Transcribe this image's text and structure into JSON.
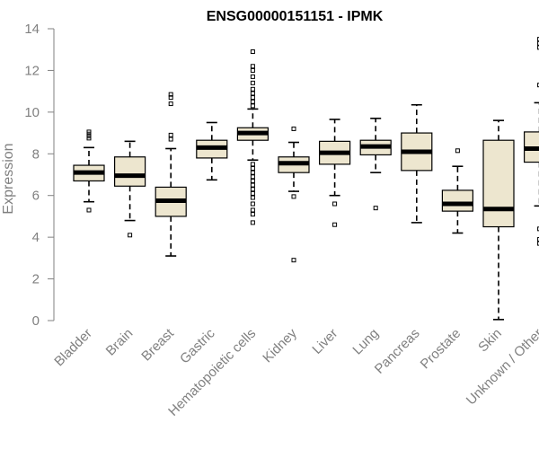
{
  "chart_data": {
    "type": "boxplot",
    "title": "ENSG00000151151 - IPMK",
    "ylabel": "Expression",
    "xlabel": "",
    "ylim": [
      0,
      14
    ],
    "yticks": [
      0,
      2,
      4,
      6,
      8,
      10,
      12,
      14
    ],
    "colors": {
      "box_fill": "#ede6cf",
      "box_stroke": "#000000",
      "median": "#000000",
      "axis": "#808080",
      "text": "#808080",
      "title": "#000000"
    },
    "groups": [
      {
        "name": "Bladder",
        "lw": 5.7,
        "q1": 6.7,
        "median": 7.1,
        "q3": 7.45,
        "uw": 8.3,
        "outliers": [
          5.3,
          8.75,
          8.85,
          8.95,
          9.05
        ]
      },
      {
        "name": "Brain",
        "lw": 4.8,
        "q1": 6.45,
        "median": 6.95,
        "q3": 7.85,
        "uw": 8.6,
        "outliers": [
          4.1
        ]
      },
      {
        "name": "Breast",
        "lw": 3.1,
        "q1": 5.0,
        "median": 5.75,
        "q3": 6.4,
        "uw": 8.25,
        "outliers": [
          8.7,
          8.9,
          10.4,
          10.7,
          10.85
        ]
      },
      {
        "name": "Gastric",
        "lw": 6.75,
        "q1": 7.8,
        "median": 8.3,
        "q3": 8.65,
        "uw": 9.5,
        "outliers": []
      },
      {
        "name": "Hematopoietic cells",
        "lw": 7.7,
        "q1": 8.65,
        "median": 9.0,
        "q3": 9.25,
        "uw": 10.15,
        "outliers": [
          4.7,
          5.1,
          5.3,
          5.6,
          5.9,
          6.1,
          6.3,
          6.5,
          6.7,
          6.9,
          7.1,
          7.3,
          7.5,
          10.3,
          10.5,
          10.7,
          10.9,
          11.1,
          11.4,
          11.7,
          12.0,
          12.2,
          12.9
        ]
      },
      {
        "name": "Kidney",
        "lw": 6.2,
        "q1": 7.1,
        "median": 7.55,
        "q3": 7.85,
        "uw": 8.55,
        "outliers": [
          2.9,
          5.95,
          9.2
        ]
      },
      {
        "name": "Liver",
        "lw": 6.0,
        "q1": 7.5,
        "median": 8.05,
        "q3": 8.6,
        "uw": 9.65,
        "outliers": [
          4.6,
          5.6
        ]
      },
      {
        "name": "Lung",
        "lw": 7.1,
        "q1": 7.95,
        "median": 8.35,
        "q3": 8.65,
        "uw": 9.7,
        "outliers": [
          5.4
        ]
      },
      {
        "name": "Pancreas",
        "lw": 4.7,
        "q1": 7.2,
        "median": 8.1,
        "q3": 9.0,
        "uw": 10.35,
        "outliers": []
      },
      {
        "name": "Prostate",
        "lw": 4.2,
        "q1": 5.25,
        "median": 5.6,
        "q3": 6.25,
        "uw": 7.4,
        "outliers": [
          8.15
        ]
      },
      {
        "name": "Skin",
        "lw": 0.05,
        "q1": 4.5,
        "median": 5.35,
        "q3": 8.65,
        "uw": 9.6,
        "outliers": []
      },
      {
        "name": "Unknown / Other",
        "lw": 5.5,
        "q1": 7.6,
        "median": 8.25,
        "q3": 9.05,
        "uw": 10.45,
        "outliers": [
          3.7,
          3.9,
          4.4,
          11.3,
          13.1,
          13.3,
          13.5
        ]
      }
    ]
  }
}
